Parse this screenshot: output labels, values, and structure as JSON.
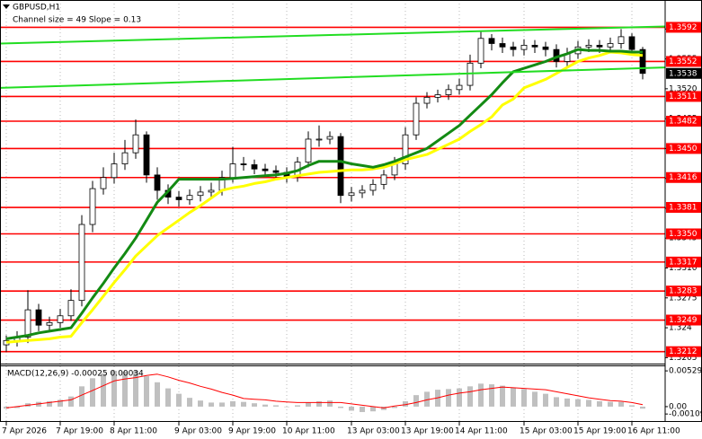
{
  "chart_data": [
    {
      "type": "candlestick",
      "title": "GBPUSD,H1",
      "subtitle": "Channel size = 49 Slope = 0.13",
      "categories": [
        "7 Apr 2026",
        null,
        null,
        null,
        null,
        "7 Apr 19:00",
        null,
        null,
        null,
        null,
        "8 Apr 11:00",
        null,
        null,
        null,
        null,
        null,
        "9 Apr 03:00",
        null,
        null,
        null,
        null,
        "9 Apr 19:00",
        null,
        null,
        null,
        null,
        "10 Apr 11:00",
        null,
        null,
        null,
        null,
        null,
        "13 Apr 03:00",
        null,
        null,
        null,
        null,
        "13 Apr 19:00",
        null,
        null,
        null,
        null,
        "14 Apr 11:00",
        null,
        null,
        null,
        null,
        null,
        "15 Apr 03:00",
        null,
        null,
        null,
        null,
        "15 Apr 19:00",
        null,
        null,
        null,
        null,
        "16 Apr 11:00",
        null
      ],
      "open": [
        1.322,
        1.3225,
        1.3229,
        1.3261,
        1.3243,
        1.3246,
        1.3254,
        1.3272,
        1.3361,
        1.3403,
        1.3416,
        1.3432,
        1.3445,
        1.3466,
        1.3419,
        1.3401,
        1.3393,
        1.339,
        1.3395,
        1.3399,
        1.3401,
        1.3416,
        1.3432,
        1.3431,
        1.3426,
        1.3424,
        1.3422,
        1.3417,
        1.3434,
        1.3461,
        1.3461,
        1.3464,
        1.3395,
        1.3398,
        1.3401,
        1.3408,
        1.3419,
        1.3432,
        1.3466,
        1.3503,
        1.351,
        1.3513,
        1.3519,
        1.3524,
        1.355,
        1.3579,
        1.3573,
        1.3569,
        1.3566,
        1.3571,
        1.3569,
        1.3566,
        1.3552,
        1.3561,
        1.3569,
        1.3571,
        1.3569,
        1.3573,
        1.3581,
        1.3566
      ],
      "high": [
        1.3231,
        1.3236,
        1.3284,
        1.3268,
        1.3253,
        1.3262,
        1.3285,
        1.3372,
        1.3412,
        1.3428,
        1.3445,
        1.346,
        1.3484,
        1.347,
        1.3428,
        1.3408,
        1.34,
        1.3402,
        1.3406,
        1.341,
        1.3424,
        1.3452,
        1.344,
        1.3437,
        1.3432,
        1.343,
        1.3428,
        1.344,
        1.347,
        1.3477,
        1.347,
        1.3468,
        1.3405,
        1.3407,
        1.3414,
        1.3425,
        1.344,
        1.3475,
        1.351,
        1.3516,
        1.3519,
        1.3525,
        1.3532,
        1.356,
        1.3588,
        1.3584,
        1.358,
        1.3575,
        1.3578,
        1.3577,
        1.3575,
        1.3572,
        1.3568,
        1.3576,
        1.3578,
        1.3577,
        1.358,
        1.359,
        1.3585,
        1.3569
      ],
      "low": [
        1.3212,
        1.3218,
        1.3222,
        1.3236,
        1.3236,
        1.324,
        1.3248,
        1.3265,
        1.3352,
        1.3396,
        1.3409,
        1.3425,
        1.3438,
        1.341,
        1.339,
        1.3385,
        1.3382,
        1.3384,
        1.3388,
        1.3392,
        1.3395,
        1.341,
        1.3424,
        1.342,
        1.3418,
        1.3416,
        1.341,
        1.3411,
        1.3428,
        1.3452,
        1.3455,
        1.3386,
        1.3388,
        1.3392,
        1.3395,
        1.3402,
        1.3413,
        1.3425,
        1.346,
        1.3497,
        1.3504,
        1.3507,
        1.3513,
        1.3518,
        1.3544,
        1.3565,
        1.3562,
        1.3558,
        1.3559,
        1.3562,
        1.3558,
        1.3545,
        1.3546,
        1.3555,
        1.3563,
        1.3562,
        1.3563,
        1.3567,
        1.356,
        1.3531
      ],
      "close": [
        1.3225,
        1.3229,
        1.3261,
        1.3243,
        1.3246,
        1.3254,
        1.3272,
        1.3361,
        1.3403,
        1.3416,
        1.3432,
        1.3445,
        1.3466,
        1.3419,
        1.3401,
        1.3393,
        1.339,
        1.3395,
        1.3399,
        1.3401,
        1.3416,
        1.3432,
        1.3431,
        1.3426,
        1.3424,
        1.3422,
        1.3417,
        1.3434,
        1.3461,
        1.3461,
        1.3464,
        1.3395,
        1.3398,
        1.3401,
        1.3408,
        1.3419,
        1.3432,
        1.3466,
        1.3503,
        1.351,
        1.3513,
        1.3519,
        1.3524,
        1.355,
        1.3579,
        1.3573,
        1.3569,
        1.3566,
        1.3571,
        1.3569,
        1.3566,
        1.3552,
        1.3561,
        1.3569,
        1.3571,
        1.3569,
        1.3573,
        1.3581,
        1.3566,
        1.3538
      ],
      "series": [
        {
          "color": "#ffff00",
          "values": [
            1.3223,
            1.3224,
            1.3225,
            1.3226,
            1.3227,
            1.3229,
            1.323,
            1.3246,
            1.3261,
            1.3277,
            1.3293,
            1.3308,
            1.3324,
            1.3336,
            1.3348,
            1.3357,
            1.3366,
            1.3375,
            1.3383,
            1.3392,
            1.3401,
            1.3404,
            1.3406,
            1.3409,
            1.3411,
            1.3414,
            1.3416,
            1.3418,
            1.342,
            1.3422,
            1.3423,
            1.3424,
            1.3425,
            1.3425,
            1.3426,
            1.3428,
            1.3432,
            1.3437,
            1.344,
            1.3443,
            1.3449,
            1.3455,
            1.3461,
            1.347,
            1.3478,
            1.3487,
            1.3501,
            1.3508,
            1.3521,
            1.3526,
            1.3531,
            1.3538,
            1.3545,
            1.3552,
            1.3556,
            1.3559,
            1.3563,
            1.3562,
            1.356,
            1.3559
          ]
        },
        {
          "color": "#138a13",
          "values": [
            1.3227,
            1.3229,
            1.3231,
            1.3234,
            1.3236,
            1.3238,
            1.324,
            1.3257,
            1.3275,
            1.3292,
            1.331,
            1.3327,
            1.3345,
            1.3366,
            1.3387,
            1.34,
            1.3414,
            1.3414,
            1.3414,
            1.3414,
            1.3414,
            1.3415,
            1.3416,
            1.3417,
            1.3418,
            1.3419,
            1.3421,
            1.3424,
            1.343,
            1.3435,
            1.3435,
            1.3435,
            1.3432,
            1.343,
            1.3428,
            1.3431,
            1.3435,
            1.344,
            1.3445,
            1.345,
            1.3459,
            1.3468,
            1.3477,
            1.3489,
            1.3501,
            1.3513,
            1.3527,
            1.354,
            1.3544,
            1.3548,
            1.3552,
            1.3557,
            1.3561,
            1.3566,
            1.3565,
            1.3565,
            1.3564,
            1.3564,
            1.3563,
            1.3563
          ]
        }
      ],
      "channel": {
        "color": "#22dd22",
        "lines": [
          [
            1.3573,
            1.3593
          ],
          [
            1.3521,
            1.3545
          ]
        ]
      },
      "levels": [
        1.3592,
        1.3552,
        1.3511,
        1.3482,
        {
          "value": 1.345,
          "label": "1.3450"
        },
        1.3416,
        1.3381,
        {
          "value": 1.335,
          "label": "1.3350"
        },
        1.3317,
        1.3283,
        1.3249,
        1.3212
      ],
      "level_color": "#ff0000",
      "last_price": 1.3538,
      "bull_color": "#ffffff",
      "bear_color": "#000000",
      "ylim": [
        1.3198,
        1.3624
      ],
      "yticks": [
        1.3205,
        1.324,
        1.3275,
        {
          "value": 1.331,
          "label": "1.3310"
        },
        1.3345,
        {
          "value": 1.338,
          "label": "1.3380"
        },
        1.3415,
        {
          "value": 1.345,
          "label": "1.3450"
        },
        1.3485,
        {
          "value": 1.352,
          "label": "1.3520"
        },
        1.3555,
        {
          "value": 1.359,
          "label": "1.3590"
        }
      ],
      "grid": true
    },
    {
      "type": "macd",
      "title": "MACD(12,26,9) -0.00025 0.00034",
      "series": [
        {
          "color": "#c0c0c0",
          "values": [
            -0.0003,
            -0.0002,
            0.0005,
            0.0007,
            0.0008,
            0.001,
            0.0015,
            0.003,
            0.0042,
            0.0049,
            0.0053,
            0.0052,
            0.0053,
            0.0045,
            0.0036,
            0.0027,
            0.0019,
            0.0013,
            0.0009,
            0.0006,
            0.0006,
            0.0008,
            0.0007,
            0.0005,
            0.0003,
            0.0002,
            0.0,
            0.0002,
            0.0006,
            0.0008,
            0.0009,
            -0.0002,
            -0.0006,
            -0.0008,
            -0.0007,
            -0.0005,
            -0.0002,
            0.0008,
            0.0017,
            0.0022,
            0.0025,
            0.0026,
            0.0027,
            0.003,
            0.0034,
            0.0033,
            0.0031,
            0.0028,
            0.0026,
            0.0022,
            0.0019,
            0.0014,
            0.0012,
            0.0011,
            0.001,
            0.0008,
            0.0007,
            0.0007,
            0.0002,
            -0.0003
          ]
        },
        {
          "color": "#ff0000",
          "values": [
            -0.0002,
            0.0,
            0.0002,
            0.0004,
            0.0006,
            0.0008,
            0.001,
            0.0017,
            0.0024,
            0.0031,
            0.0038,
            0.0041,
            0.0043,
            0.0046,
            0.0048,
            0.0044,
            0.0039,
            0.0035,
            0.003,
            0.0026,
            0.0021,
            0.0017,
            0.0012,
            0.0011,
            0.001,
            0.0008,
            0.0007,
            0.0006,
            0.0006,
            0.0006,
            0.0006,
            0.0006,
            0.0004,
            0.0002,
            0.0,
            -0.0002,
            0.0001,
            0.0003,
            0.0006,
            0.001,
            0.0013,
            0.0017,
            0.002,
            0.0022,
            0.0025,
            0.0027,
            0.0029,
            0.0028,
            0.0027,
            0.0026,
            0.0025,
            0.0022,
            0.0019,
            0.0016,
            0.0013,
            0.0011,
            0.0009,
            0.0008,
            0.0006,
            0.0003
          ]
        }
      ],
      "ylim": [
        -0.002,
        0.0061
      ],
      "yticks": [
        0.00529,
        {
          "value": 0,
          "label": "0.00"
        },
        -0.00109
      ]
    }
  ]
}
